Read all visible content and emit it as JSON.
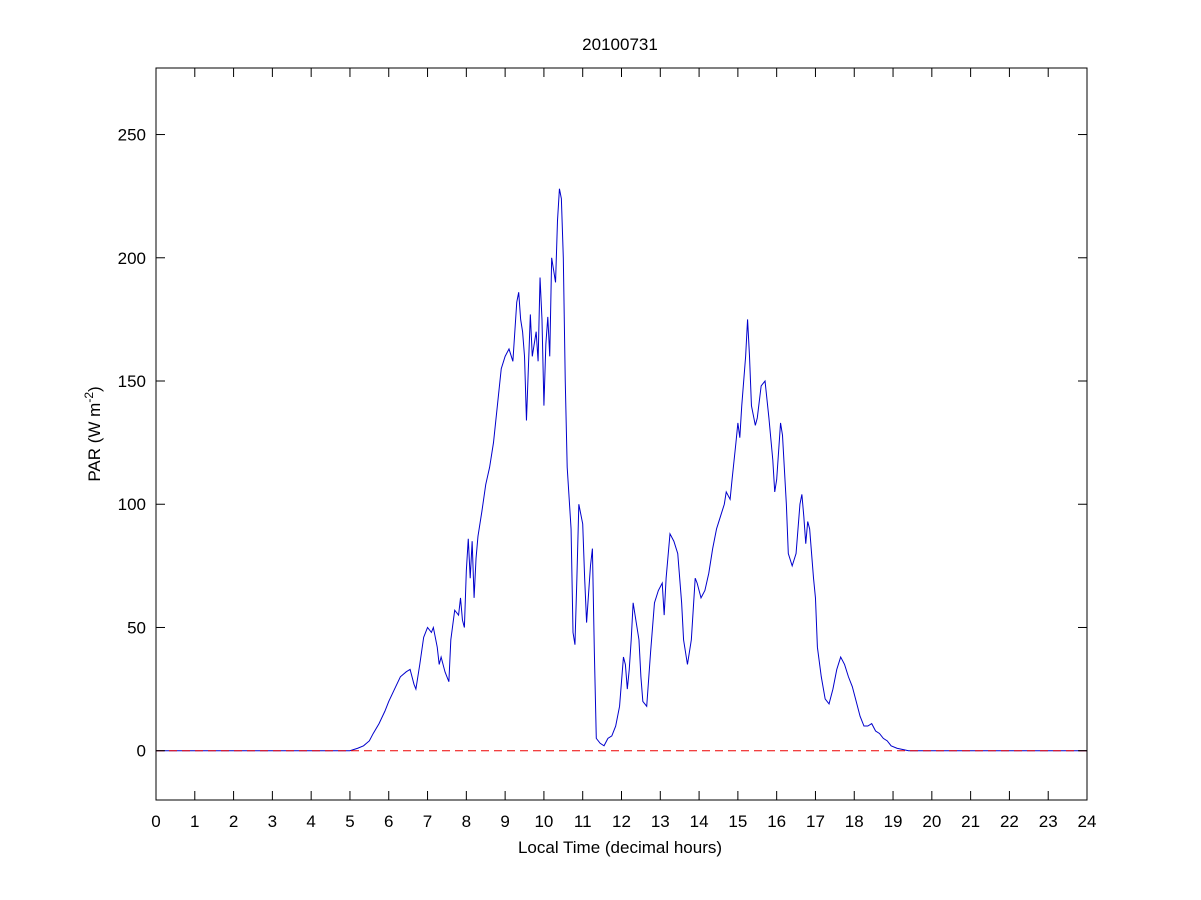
{
  "chart_data": {
    "type": "line",
    "title": "20100731",
    "xlabel": "Local Time (decimal hours)",
    "ylabel": "PAR (W m",
    "ylabel_superscript": "-2",
    "ylabel_suffix": ")",
    "xlim": [
      0,
      24
    ],
    "ylim": [
      -20,
      277
    ],
    "xticks": [
      0,
      1,
      2,
      3,
      4,
      5,
      6,
      7,
      8,
      9,
      10,
      11,
      12,
      13,
      14,
      15,
      16,
      17,
      18,
      19,
      20,
      21,
      22,
      23,
      24
    ],
    "yticks": [
      0,
      50,
      100,
      150,
      200,
      250
    ],
    "grid": false,
    "series": [
      {
        "color": "#0000cc",
        "style": "solid",
        "points": [
          [
            0,
            0
          ],
          [
            5.0,
            0
          ],
          [
            5.1,
            0.5
          ],
          [
            5.2,
            1
          ],
          [
            5.35,
            2
          ],
          [
            5.5,
            4
          ],
          [
            5.6,
            7
          ],
          [
            5.75,
            11
          ],
          [
            5.9,
            16
          ],
          [
            6.0,
            20
          ],
          [
            6.15,
            25
          ],
          [
            6.3,
            30
          ],
          [
            6.45,
            32
          ],
          [
            6.55,
            33
          ],
          [
            6.65,
            27
          ],
          [
            6.7,
            25
          ],
          [
            6.8,
            35
          ],
          [
            6.9,
            46
          ],
          [
            7.0,
            50
          ],
          [
            7.1,
            48
          ],
          [
            7.15,
            50
          ],
          [
            7.25,
            42
          ],
          [
            7.3,
            35
          ],
          [
            7.35,
            38
          ],
          [
            7.45,
            32
          ],
          [
            7.5,
            30
          ],
          [
            7.55,
            28
          ],
          [
            7.6,
            45
          ],
          [
            7.7,
            57
          ],
          [
            7.8,
            55
          ],
          [
            7.85,
            62
          ],
          [
            7.9,
            53
          ],
          [
            7.95,
            50
          ],
          [
            8.0,
            73
          ],
          [
            8.05,
            86
          ],
          [
            8.1,
            70
          ],
          [
            8.15,
            85
          ],
          [
            8.2,
            62
          ],
          [
            8.25,
            78
          ],
          [
            8.3,
            87
          ],
          [
            8.4,
            97
          ],
          [
            8.5,
            108
          ],
          [
            8.6,
            115
          ],
          [
            8.7,
            125
          ],
          [
            8.8,
            140
          ],
          [
            8.9,
            155
          ],
          [
            9.0,
            160
          ],
          [
            9.1,
            163
          ],
          [
            9.2,
            158
          ],
          [
            9.3,
            182
          ],
          [
            9.35,
            186
          ],
          [
            9.4,
            175
          ],
          [
            9.45,
            170
          ],
          [
            9.5,
            160
          ],
          [
            9.55,
            134
          ],
          [
            9.65,
            177
          ],
          [
            9.7,
            160
          ],
          [
            9.8,
            170
          ],
          [
            9.85,
            158
          ],
          [
            9.9,
            192
          ],
          [
            9.95,
            175
          ],
          [
            10.0,
            140
          ],
          [
            10.05,
            165
          ],
          [
            10.1,
            176
          ],
          [
            10.15,
            160
          ],
          [
            10.2,
            200
          ],
          [
            10.3,
            190
          ],
          [
            10.35,
            215
          ],
          [
            10.4,
            228
          ],
          [
            10.45,
            224
          ],
          [
            10.5,
            200
          ],
          [
            10.55,
            150
          ],
          [
            10.6,
            115
          ],
          [
            10.7,
            90
          ],
          [
            10.75,
            48
          ],
          [
            10.8,
            43
          ],
          [
            10.85,
            70
          ],
          [
            10.9,
            100
          ],
          [
            11.0,
            92
          ],
          [
            11.05,
            70
          ],
          [
            11.1,
            52
          ],
          [
            11.2,
            75
          ],
          [
            11.25,
            82
          ],
          [
            11.3,
            40
          ],
          [
            11.35,
            5
          ],
          [
            11.45,
            3
          ],
          [
            11.55,
            2
          ],
          [
            11.65,
            5
          ],
          [
            11.75,
            6
          ],
          [
            11.85,
            10
          ],
          [
            11.95,
            18
          ],
          [
            12.05,
            38
          ],
          [
            12.1,
            35
          ],
          [
            12.15,
            25
          ],
          [
            12.2,
            33
          ],
          [
            12.25,
            45
          ],
          [
            12.3,
            60
          ],
          [
            12.35,
            55
          ],
          [
            12.45,
            45
          ],
          [
            12.5,
            30
          ],
          [
            12.55,
            20
          ],
          [
            12.65,
            18
          ],
          [
            12.75,
            40
          ],
          [
            12.85,
            60
          ],
          [
            12.95,
            65
          ],
          [
            13.05,
            68
          ],
          [
            13.1,
            55
          ],
          [
            13.15,
            70
          ],
          [
            13.25,
            88
          ],
          [
            13.35,
            85
          ],
          [
            13.45,
            80
          ],
          [
            13.55,
            60
          ],
          [
            13.6,
            45
          ],
          [
            13.7,
            35
          ],
          [
            13.8,
            45
          ],
          [
            13.9,
            70
          ],
          [
            13.95,
            68
          ],
          [
            14.05,
            62
          ],
          [
            14.15,
            65
          ],
          [
            14.25,
            72
          ],
          [
            14.35,
            82
          ],
          [
            14.45,
            90
          ],
          [
            14.55,
            95
          ],
          [
            14.65,
            100
          ],
          [
            14.7,
            105
          ],
          [
            14.8,
            102
          ],
          [
            14.85,
            110
          ],
          [
            14.95,
            125
          ],
          [
            15.0,
            133
          ],
          [
            15.05,
            127
          ],
          [
            15.1,
            140
          ],
          [
            15.2,
            160
          ],
          [
            15.25,
            175
          ],
          [
            15.3,
            160
          ],
          [
            15.35,
            140
          ],
          [
            15.45,
            132
          ],
          [
            15.5,
            135
          ],
          [
            15.6,
            148
          ],
          [
            15.7,
            150
          ],
          [
            15.8,
            135
          ],
          [
            15.9,
            118
          ],
          [
            15.95,
            105
          ],
          [
            16.0,
            110
          ],
          [
            16.1,
            133
          ],
          [
            16.15,
            128
          ],
          [
            16.25,
            100
          ],
          [
            16.3,
            80
          ],
          [
            16.4,
            75
          ],
          [
            16.5,
            80
          ],
          [
            16.6,
            100
          ],
          [
            16.65,
            104
          ],
          [
            16.7,
            95
          ],
          [
            16.75,
            84
          ],
          [
            16.8,
            93
          ],
          [
            16.85,
            90
          ],
          [
            16.95,
            70
          ],
          [
            17.0,
            62
          ],
          [
            17.05,
            42
          ],
          [
            17.15,
            30
          ],
          [
            17.25,
            21
          ],
          [
            17.35,
            19
          ],
          [
            17.45,
            25
          ],
          [
            17.55,
            33
          ],
          [
            17.65,
            38
          ],
          [
            17.75,
            35
          ],
          [
            17.85,
            30
          ],
          [
            17.95,
            26
          ],
          [
            18.05,
            20
          ],
          [
            18.15,
            14
          ],
          [
            18.25,
            10
          ],
          [
            18.35,
            10
          ],
          [
            18.45,
            11
          ],
          [
            18.55,
            8
          ],
          [
            18.65,
            7
          ],
          [
            18.75,
            5
          ],
          [
            18.85,
            4
          ],
          [
            18.95,
            2
          ],
          [
            19.1,
            1
          ],
          [
            19.25,
            0.5
          ],
          [
            19.4,
            0
          ],
          [
            24,
            0
          ]
        ]
      },
      {
        "color": "#ee0000",
        "style": "dashed",
        "points": [
          [
            0,
            0
          ],
          [
            24,
            0
          ]
        ]
      }
    ]
  }
}
